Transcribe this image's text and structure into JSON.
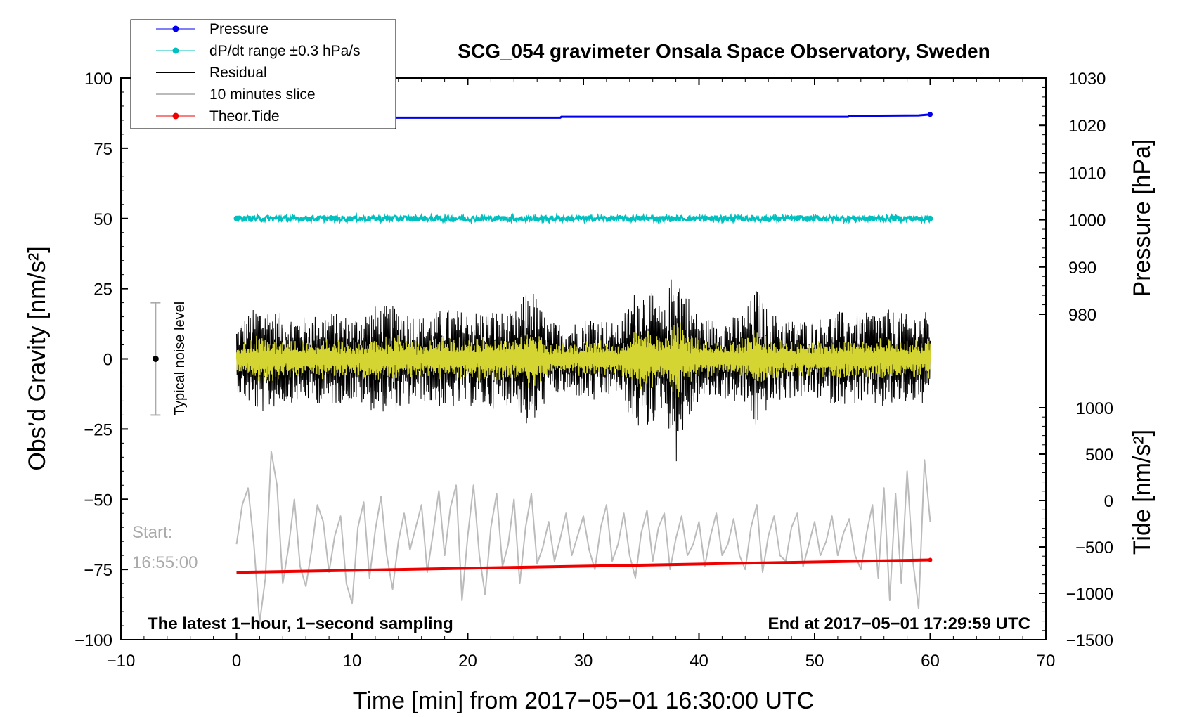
{
  "chart_data": {
    "type": "line",
    "title": "SCG_054 gravimeter Onsala Space Observatory, Sweden",
    "xlabel": "Time [min] from 2017−05−01 16:30:00 UTC",
    "ylabel_left": "Obs’d Gravity [nm/s²]",
    "ylabel_right_pressure": "Pressure [hPa]",
    "ylabel_right_tide": "Tide [nm/s²]",
    "xlim": [
      -10,
      70
    ],
    "ylim": [
      -100,
      100
    ],
    "pressure_axis_range": [
      980,
      1030
    ],
    "tide_axis_range": [
      -1500,
      1000
    ],
    "x_ticks": [
      "−10",
      "0",
      "10",
      "20",
      "30",
      "40",
      "50",
      "60",
      "70"
    ],
    "x_tick_values": [
      -10,
      0,
      10,
      20,
      30,
      40,
      50,
      60,
      70
    ],
    "y_ticks": [
      "100",
      "75",
      "50",
      "25",
      "0",
      "−25",
      "−50",
      "−75",
      "−100"
    ],
    "y_tick_values": [
      100,
      75,
      50,
      25,
      0,
      -25,
      -50,
      -75,
      -100
    ],
    "pressure_ticks": [
      "1030",
      "1020",
      "1010",
      "1000",
      "990",
      "980"
    ],
    "pressure_tick_values": [
      1030,
      1020,
      1010,
      1000,
      990,
      980
    ],
    "tide_ticks": [
      "1000",
      "500",
      "0",
      "−500",
      "−1000",
      "−1500"
    ],
    "tide_tick_values": [
      1000,
      500,
      0,
      -500,
      -1000,
      -1500
    ],
    "series": [
      {
        "name": "Pressure",
        "color": "#0000ee",
        "axis": "pressure",
        "x": [
          0,
          10,
          20,
          28,
          28.1,
          40,
          52.9,
          53,
          59,
          60
        ],
        "values": [
          1021.6,
          1021.6,
          1021.6,
          1021.6,
          1021.8,
          1021.8,
          1021.8,
          1022.0,
          1022.1,
          1022.3
        ]
      },
      {
        "name": "dP/dt range ±0.3 hPa/s",
        "color": "#00c0c0",
        "axis": "gravity",
        "x": [
          0,
          60
        ],
        "values": [
          50,
          50
        ],
        "noise_amplitude": 1.0
      },
      {
        "name": "Residual",
        "color": "#000000",
        "axis": "gravity",
        "x": [
          0,
          2,
          4,
          6,
          8,
          10,
          12,
          14,
          16,
          18,
          20,
          22,
          24,
          25.4,
          27,
          29,
          31,
          33,
          34.5,
          35.5,
          37,
          38,
          38.5,
          40,
          42,
          44,
          45,
          46,
          48,
          50,
          52,
          54,
          56,
          58,
          60
        ],
        "envelope": [
          12,
          20,
          16,
          15,
          17,
          15,
          19,
          19,
          15,
          18,
          17,
          18,
          16,
          27,
          13,
          13,
          16,
          12,
          25,
          26,
          17,
          38,
          28,
          15,
          14,
          17,
          26,
          17,
          14,
          14,
          17,
          16,
          18,
          16,
          17
        ]
      },
      {
        "name": "10 minutes slice",
        "color": "#bbbbbb",
        "axis": "gravity",
        "start_label": "Start:",
        "start_time": "16:55:00",
        "x": [
          0,
          0.5,
          1,
          1.5,
          2,
          2.5,
          3,
          3.5,
          4,
          4.5,
          5,
          5.5,
          6,
          6.5,
          7,
          7.5,
          8,
          8.5,
          9,
          9.5,
          10,
          10.5,
          11,
          11.5,
          12,
          12.5,
          13,
          13.5,
          14,
          14.5,
          15,
          15.5,
          16,
          16.5,
          17,
          17.5,
          18,
          18.5,
          19,
          19.5,
          20,
          20.5,
          21,
          21.5,
          22,
          22.5,
          23,
          23.5,
          24,
          24.5,
          25,
          25.5,
          26,
          26.5,
          27,
          27.5,
          28,
          28.5,
          29,
          29.5,
          30,
          30.5,
          31,
          31.5,
          32,
          32.5,
          33,
          33.5,
          34,
          34.5,
          35,
          35.5,
          36,
          36.5,
          37,
          37.5,
          38,
          38.5,
          39,
          39.5,
          40,
          40.5,
          41,
          41.5,
          42,
          42.5,
          43,
          43.5,
          44,
          44.5,
          45,
          45.5,
          46,
          46.5,
          47,
          47.5,
          48,
          48.5,
          49,
          49.5,
          50,
          50.5,
          51,
          51.5,
          52,
          52.5,
          53,
          53.5,
          54,
          54.5,
          55,
          55.5,
          56,
          56.5,
          57,
          57.5,
          58,
          58.5,
          59,
          59.5,
          60
        ],
        "values": [
          -66,
          -52,
          -46,
          -66,
          -94,
          -78,
          -33,
          -45,
          -80,
          -67,
          -50,
          -74,
          -81,
          -68,
          -52,
          -58,
          -76,
          -63,
          -56,
          -80,
          -87,
          -60,
          -51,
          -78,
          -61,
          -49,
          -70,
          -82,
          -65,
          -55,
          -68,
          -60,
          -52,
          -76,
          -62,
          -47,
          -70,
          -53,
          -45,
          -86,
          -63,
          -45,
          -70,
          -84,
          -60,
          -48,
          -74,
          -66,
          -50,
          -80,
          -60,
          -48,
          -73,
          -67,
          -58,
          -72,
          -64,
          -55,
          -70,
          -63,
          -56,
          -68,
          -75,
          -60,
          -52,
          -72,
          -66,
          -55,
          -70,
          -78,
          -62,
          -54,
          -72,
          -60,
          -55,
          -75,
          -64,
          -56,
          -70,
          -66,
          -58,
          -74,
          -63,
          -55,
          -70,
          -66,
          -57,
          -70,
          -75,
          -60,
          -52,
          -76,
          -63,
          -56,
          -70,
          -72,
          -60,
          -55,
          -74,
          -66,
          -58,
          -70,
          -65,
          -56,
          -70,
          -62,
          -57,
          -70,
          -75,
          -62,
          -52,
          -78,
          -46,
          -86,
          -48,
          -80,
          -40,
          -72,
          -89,
          -36,
          -58
        ]
      },
      {
        "name": "Theor.Tide",
        "color": "#ee0000",
        "axis": "tide",
        "x": [
          0,
          60
        ],
        "values": [
          -775,
          -640
        ]
      }
    ],
    "legend": {
      "placement": "top-left",
      "entries": [
        "Pressure",
        "dP/dt range ±0.3 hPa/s",
        "Residual",
        "10 minutes slice",
        "Theor.Tide"
      ]
    },
    "annotations": {
      "noise_label": "Typical noise level",
      "noise_range": [
        -20,
        20
      ],
      "noise_x": -7,
      "bottom_left": "The latest 1−hour, 1−second sampling",
      "bottom_right": "End at 2017−05−01 17:29:59 UTC",
      "slice_overlay_color": "#d4d432"
    }
  }
}
